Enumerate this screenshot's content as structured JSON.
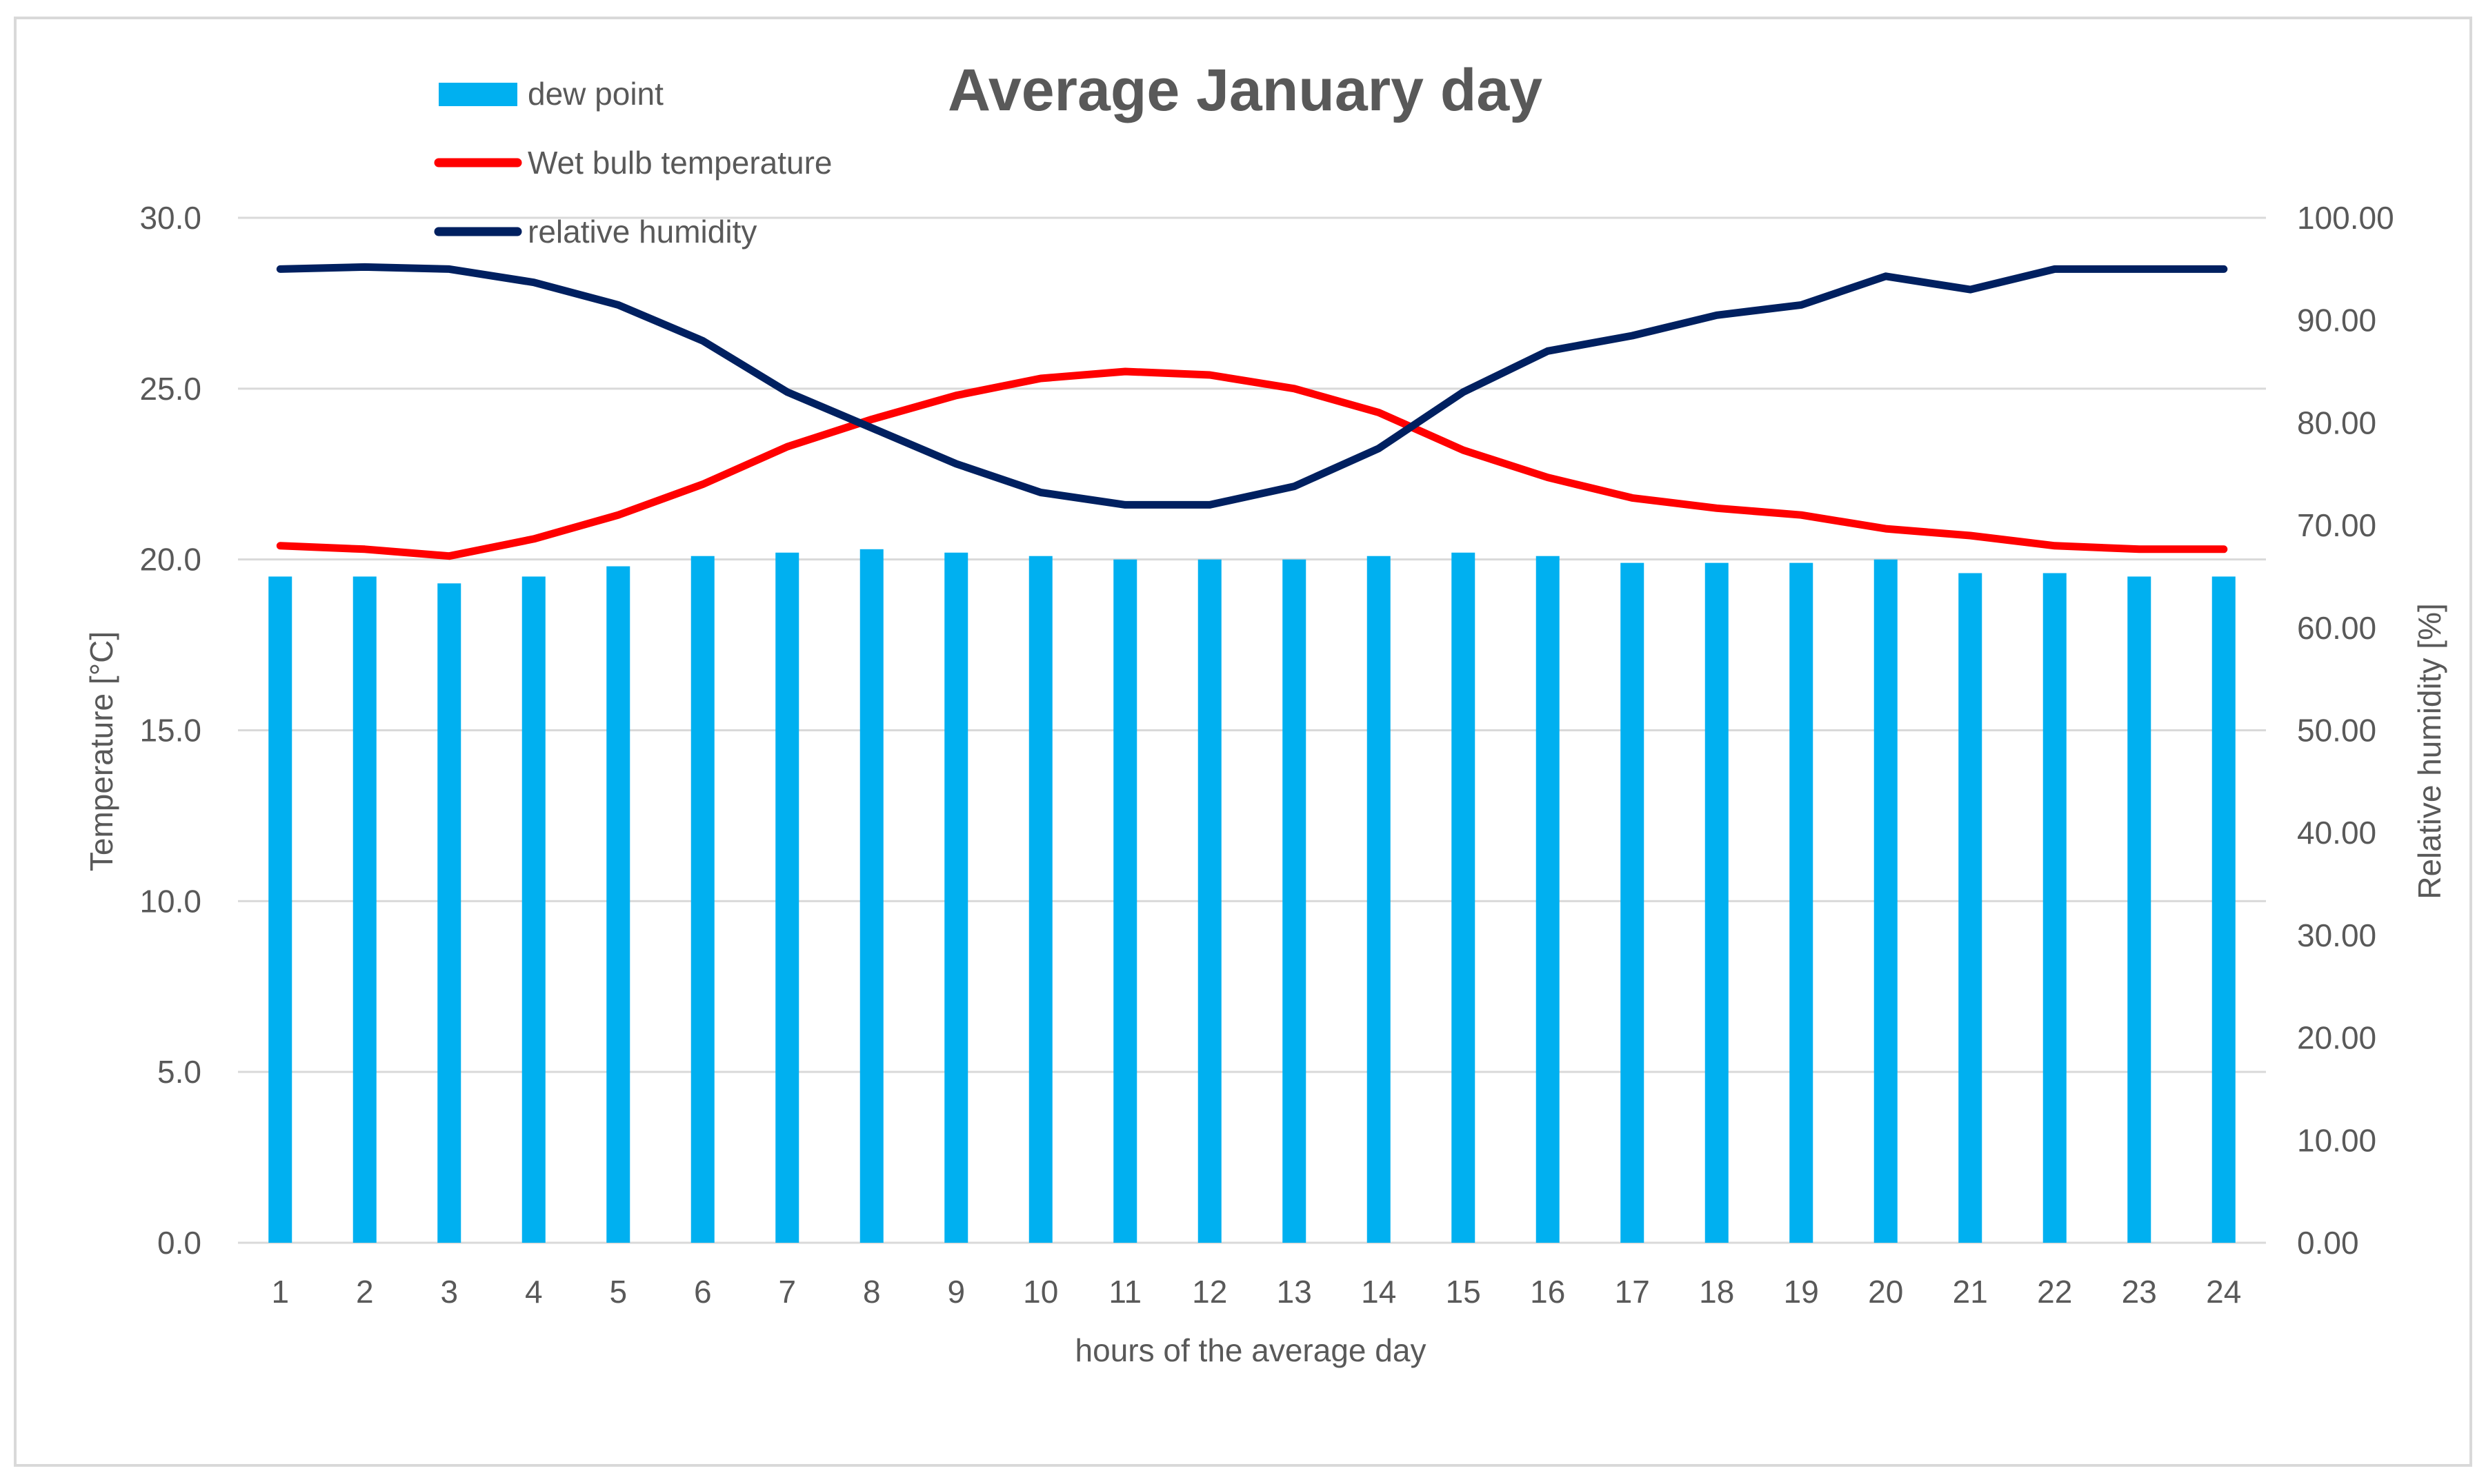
{
  "chart_data": {
    "type": "bar+line",
    "title": "Average January day",
    "xlabel": "hours of the average day",
    "ylabel_left": "Temperature [°C]",
    "ylabel_right": "Relative humidity [%]",
    "categories": [
      "1",
      "2",
      "3",
      "4",
      "5",
      "6",
      "7",
      "8",
      "9",
      "10",
      "11",
      "12",
      "13",
      "14",
      "15",
      "16",
      "17",
      "18",
      "19",
      "20",
      "21",
      "22",
      "23",
      "24"
    ],
    "ylim_left": [
      0,
      30
    ],
    "ylim_right": [
      0,
      100
    ],
    "yticks_left": [
      "0.0",
      "5.0",
      "10.0",
      "15.0",
      "20.0",
      "25.0",
      "30.0"
    ],
    "yticks_right": [
      "0.00",
      "10.00",
      "20.00",
      "30.00",
      "40.00",
      "50.00",
      "60.00",
      "70.00",
      "80.00",
      "90.00",
      "100.00"
    ],
    "grid": true,
    "legend_position": "top-left",
    "series": [
      {
        "name": "dew point",
        "kind": "bar",
        "axis": "left",
        "color": "#00b0f0",
        "values": [
          19.5,
          19.5,
          19.3,
          19.5,
          19.8,
          20.1,
          20.2,
          20.3,
          20.2,
          20.1,
          20.0,
          20.0,
          20.0,
          20.1,
          20.2,
          20.1,
          19.9,
          19.9,
          19.9,
          20.0,
          19.6,
          19.6,
          19.5,
          19.5
        ]
      },
      {
        "name": "Wet bulb temperature",
        "kind": "line",
        "axis": "left",
        "color": "#ff0000",
        "values": [
          20.4,
          20.3,
          20.1,
          20.6,
          21.3,
          22.2,
          23.3,
          24.1,
          24.8,
          25.3,
          25.5,
          25.4,
          25.0,
          24.3,
          23.2,
          22.4,
          21.8,
          21.5,
          21.3,
          20.9,
          20.7,
          20.4,
          20.3,
          20.3
        ]
      },
      {
        "name": "relative humidity",
        "kind": "line",
        "axis": "right",
        "color": "#002060",
        "values": [
          95.0,
          95.2,
          95.0,
          93.7,
          91.5,
          88.0,
          83.0,
          79.5,
          76.0,
          73.2,
          72.0,
          72.0,
          73.8,
          77.5,
          83.0,
          87.0,
          88.5,
          90.5,
          91.5,
          94.3,
          93.0,
          95.0,
          95.0,
          95.0
        ]
      }
    ]
  }
}
